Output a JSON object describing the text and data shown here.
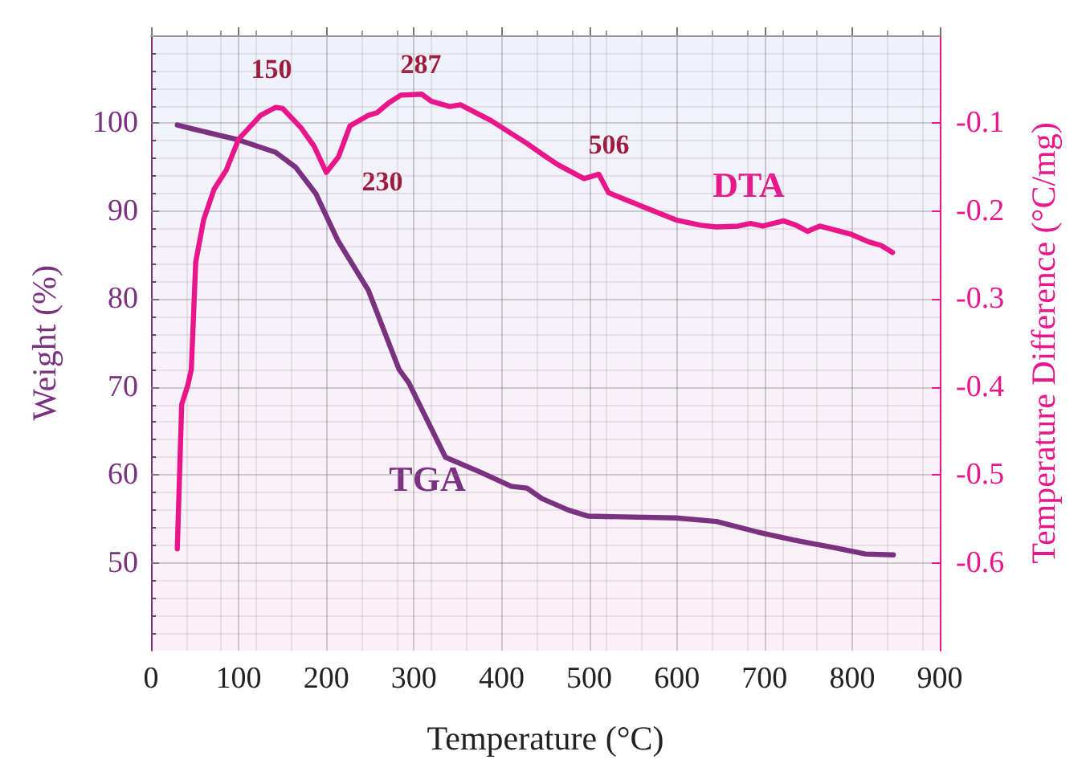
{
  "chart_data": {
    "type": "line",
    "xlabel": "Temperature (°C)",
    "ylabel": "Weight (%)",
    "y2label": "Temperature Difference (°C/mg)",
    "xlim": [
      0,
      900
    ],
    "xticks": [
      0,
      100,
      200,
      300,
      400,
      500,
      600,
      700,
      800,
      900
    ],
    "ylim": [
      40,
      110
    ],
    "yticks": [
      50,
      60,
      70,
      80,
      90,
      100
    ],
    "y2lim": [
      -0.7,
      0
    ],
    "y2ticks": [
      -0.6,
      -0.5,
      -0.4,
      -0.3,
      -0.2,
      -0.1
    ],
    "grid": true,
    "legend": false,
    "marker": "none",
    "line_style": "solid",
    "series": [
      {
        "name": "TGA",
        "color": "#7a3180",
        "x": [
          30,
          50,
          100,
          142,
          165,
          188,
          213,
          248,
          283,
          294,
          336,
          376,
          411,
          429,
          446,
          476,
          499,
          599,
          645,
          692,
          733,
          780,
          815,
          847
        ],
        "values": [
          99.8,
          99.3,
          98.1,
          96.7,
          95,
          92,
          86.7,
          81,
          72,
          70.5,
          62,
          60.3,
          58.7,
          58.5,
          57.3,
          56,
          55.3,
          55.1,
          54.7,
          53.5,
          52.6,
          51.7,
          51,
          50.9
        ]
      },
      {
        "name": "DTA",
        "color": "#e8168a",
        "axis": "y2",
        "x": [
          30,
          35,
          42,
          46,
          51,
          60,
          72,
          86,
          100,
          125,
          142,
          150,
          171,
          186,
          200,
          214,
          227,
          248,
          258,
          271,
          285,
          309,
          320,
          341,
          353,
          388,
          429,
          446,
          464,
          494,
          511,
          522,
          564,
          599,
          627,
          645,
          670,
          684,
          698,
          722,
          736,
          749,
          763,
          798,
          819,
          833,
          846
        ],
        "values": [
          -0.584,
          -0.42,
          -0.398,
          -0.38,
          -0.258,
          -0.21,
          -0.175,
          -0.153,
          -0.118,
          -0.091,
          -0.082,
          -0.083,
          -0.105,
          -0.126,
          -0.156,
          -0.138,
          -0.103,
          -0.091,
          -0.088,
          -0.077,
          -0.068,
          -0.067,
          -0.075,
          -0.081,
          -0.079,
          -0.097,
          -0.123,
          -0.135,
          -0.147,
          -0.163,
          -0.158,
          -0.179,
          -0.196,
          -0.21,
          -0.216,
          -0.218,
          -0.217,
          -0.214,
          -0.217,
          -0.211,
          -0.216,
          -0.223,
          -0.217,
          -0.226,
          -0.235,
          -0.239,
          -0.247
        ]
      }
    ],
    "annotations": [
      "150",
      "230",
      "287",
      "506"
    ]
  }
}
